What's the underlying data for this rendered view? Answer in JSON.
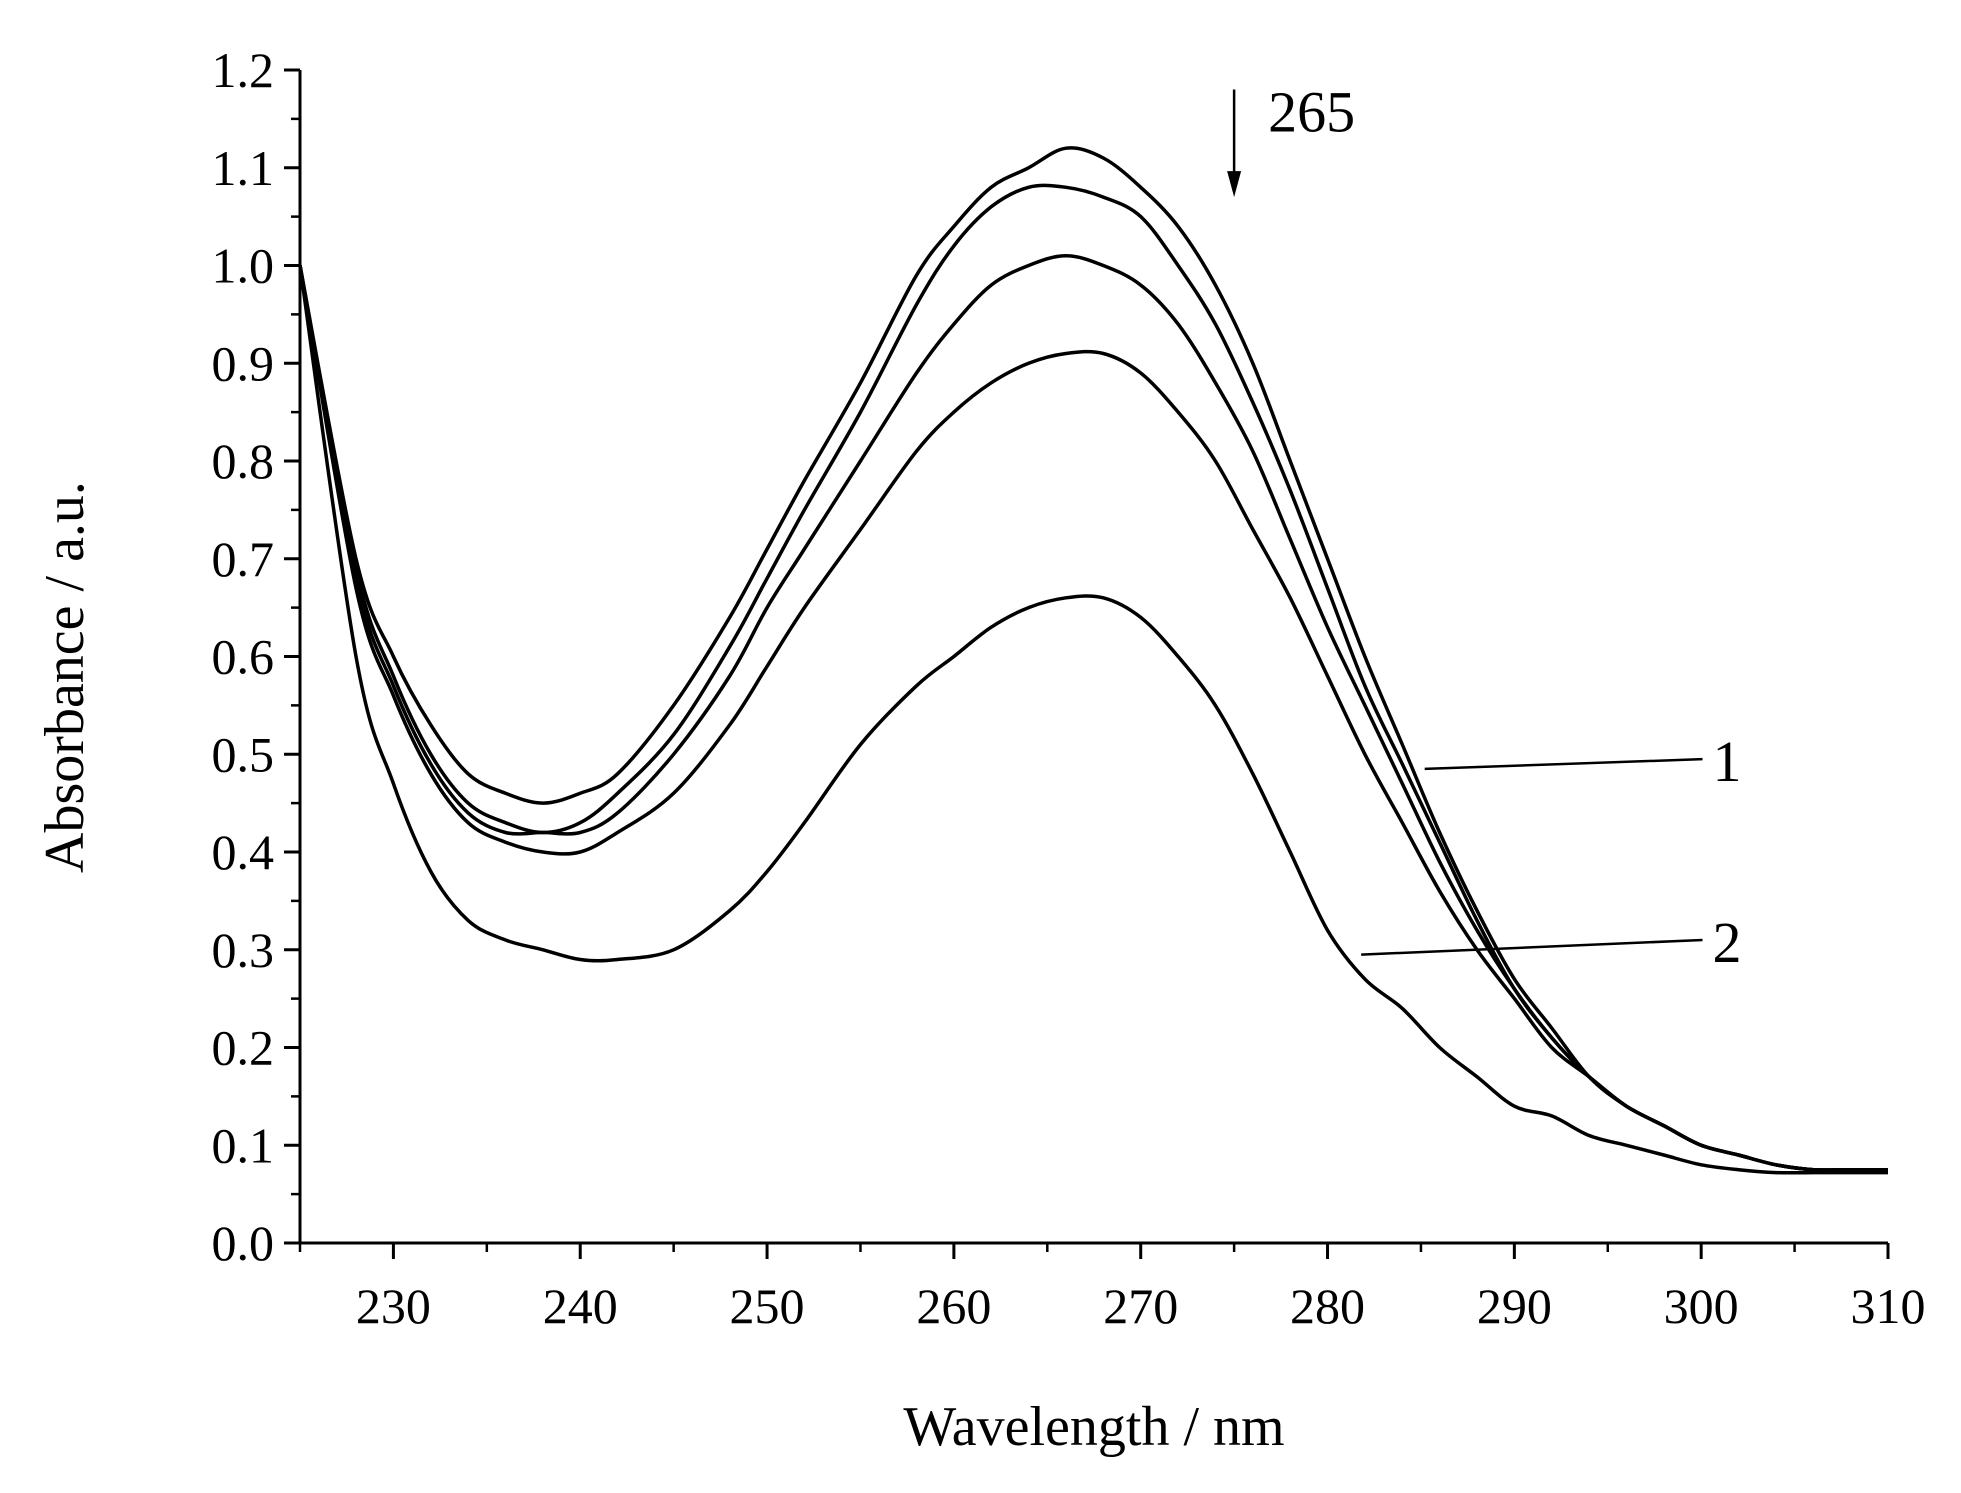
{
  "chart_data": {
    "type": "line",
    "title": "",
    "xlabel": "Wavelength / nm",
    "ylabel": "Absorbance / a.u.",
    "xlim": [
      225,
      310
    ],
    "ylim": [
      0.0,
      1.2
    ],
    "x_ticks": [
      230,
      240,
      250,
      260,
      270,
      280,
      290,
      300,
      310
    ],
    "x_tick_labels": [
      "230",
      "240",
      "250",
      "260",
      "270",
      "280",
      "290",
      "300",
      "310"
    ],
    "y_ticks": [
      0.0,
      0.1,
      0.2,
      0.3,
      0.4,
      0.5,
      0.6,
      0.7,
      0.8,
      0.9,
      1.0,
      1.1,
      1.2
    ],
    "y_tick_labels": [
      "0.0",
      "0.1",
      "0.2",
      "0.3",
      "0.4",
      "0.5",
      "0.6",
      "0.7",
      "0.8",
      "0.9",
      "1.0",
      "1.1",
      "1.2"
    ],
    "grid": false,
    "legend": "none",
    "color": "#000000",
    "x": [
      225,
      228,
      230,
      232,
      234,
      236,
      238,
      240,
      242,
      245,
      248,
      250,
      252,
      255,
      258,
      260,
      262,
      264,
      266,
      268,
      270,
      272,
      274,
      276,
      278,
      280,
      282,
      284,
      286,
      288,
      290,
      292,
      294,
      296,
      298,
      300,
      302,
      304,
      306,
      308,
      310
    ],
    "series": [
      {
        "name": "1",
        "values": [
          1.0,
          0.7,
          0.6,
          0.53,
          0.48,
          0.46,
          0.45,
          0.46,
          0.48,
          0.55,
          0.64,
          0.71,
          0.78,
          0.88,
          0.99,
          1.04,
          1.08,
          1.1,
          1.12,
          1.11,
          1.08,
          1.04,
          0.98,
          0.9,
          0.8,
          0.7,
          0.6,
          0.51,
          0.42,
          0.34,
          0.27,
          0.22,
          0.17,
          0.14,
          0.12,
          0.1,
          0.09,
          0.08,
          0.075,
          0.075,
          0.075
        ]
      },
      {
        "name": "",
        "values": [
          1.0,
          0.69,
          0.58,
          0.5,
          0.45,
          0.43,
          0.42,
          0.43,
          0.46,
          0.52,
          0.61,
          0.68,
          0.75,
          0.85,
          0.96,
          1.02,
          1.06,
          1.08,
          1.08,
          1.07,
          1.05,
          1.0,
          0.94,
          0.86,
          0.77,
          0.67,
          0.57,
          0.49,
          0.41,
          0.33,
          0.26,
          0.21,
          0.17,
          0.14,
          0.12,
          0.1,
          0.09,
          0.08,
          0.075,
          0.075,
          0.075
        ]
      },
      {
        "name": "",
        "values": [
          1.0,
          0.68,
          0.57,
          0.49,
          0.44,
          0.42,
          0.42,
          0.42,
          0.44,
          0.5,
          0.58,
          0.65,
          0.71,
          0.8,
          0.89,
          0.94,
          0.98,
          1.0,
          1.01,
          1.0,
          0.98,
          0.94,
          0.88,
          0.81,
          0.72,
          0.63,
          0.55,
          0.47,
          0.39,
          0.32,
          0.26,
          0.21,
          0.17,
          0.14,
          0.12,
          0.1,
          0.09,
          0.08,
          0.075,
          0.075,
          0.075
        ]
      },
      {
        "name": "",
        "values": [
          1.0,
          0.67,
          0.56,
          0.48,
          0.43,
          0.41,
          0.4,
          0.4,
          0.42,
          0.46,
          0.53,
          0.59,
          0.65,
          0.73,
          0.81,
          0.85,
          0.88,
          0.9,
          0.91,
          0.91,
          0.89,
          0.85,
          0.8,
          0.73,
          0.66,
          0.58,
          0.5,
          0.43,
          0.36,
          0.3,
          0.25,
          0.2,
          0.17,
          0.14,
          0.12,
          0.1,
          0.09,
          0.08,
          0.075,
          0.075,
          0.075
        ]
      },
      {
        "name": "2",
        "values": [
          1.0,
          0.6,
          0.47,
          0.38,
          0.33,
          0.31,
          0.3,
          0.29,
          0.29,
          0.3,
          0.34,
          0.38,
          0.43,
          0.51,
          0.57,
          0.6,
          0.63,
          0.65,
          0.66,
          0.66,
          0.64,
          0.6,
          0.55,
          0.48,
          0.4,
          0.32,
          0.27,
          0.24,
          0.2,
          0.17,
          0.14,
          0.13,
          0.11,
          0.1,
          0.09,
          0.08,
          0.075,
          0.072,
          0.072,
          0.072,
          0.072
        ]
      }
    ],
    "annotations": [
      {
        "text": "265",
        "kind": "downward-arrow",
        "x": 275,
        "y_from": 1.18,
        "y_to": 1.07
      },
      {
        "text": "1",
        "kind": "leader-line",
        "target_x": 285.2,
        "target_y": 0.485,
        "label_x": 300.5,
        "label_y": 0.495
      },
      {
        "text": "2",
        "kind": "leader-line",
        "target_x": 281.8,
        "target_y": 0.295,
        "label_x": 300.5,
        "label_y": 0.31
      }
    ]
  }
}
